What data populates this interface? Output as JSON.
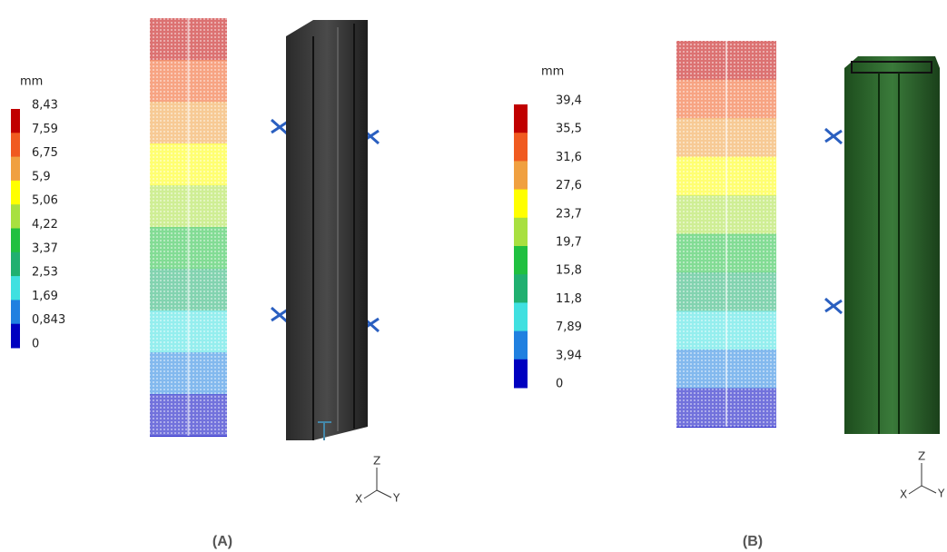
{
  "panels": [
    {
      "unit": "mm",
      "legend": [
        "8,43",
        "7,59",
        "6,75",
        "5,9",
        "5,06",
        "4,22",
        "3,37",
        "2,53",
        "1,69",
        "0,843",
        "0"
      ],
      "caption": "(A)",
      "axes": [
        "Z",
        "Y",
        "X"
      ]
    },
    {
      "unit": "mm",
      "legend": [
        "39,4",
        "35,5",
        "31,6",
        "27,6",
        "23,7",
        "19,7",
        "15,8",
        "11,8",
        "7,89",
        "3,94",
        "0"
      ],
      "caption": "(B)",
      "axes": [
        "Z",
        "Y",
        "X"
      ]
    }
  ]
}
